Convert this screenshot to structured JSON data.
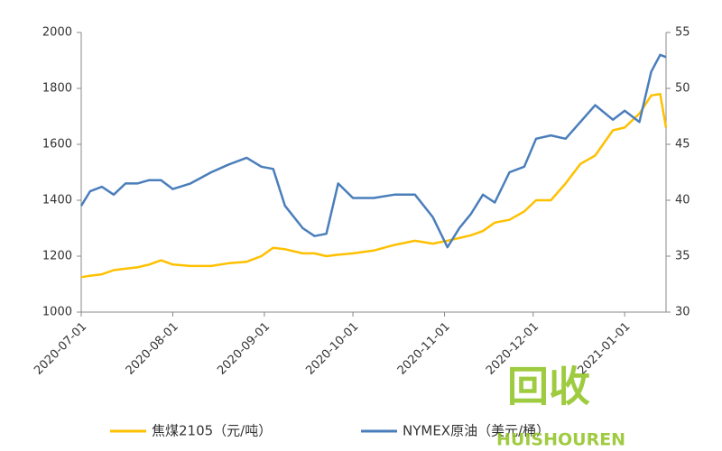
{
  "chart_data": {
    "type": "line",
    "x": [
      "2020-07-01",
      "2020-07-04",
      "2020-07-08",
      "2020-07-12",
      "2020-07-16",
      "2020-07-20",
      "2020-07-24",
      "2020-07-28",
      "2020-08-01",
      "2020-08-07",
      "2020-08-14",
      "2020-08-20",
      "2020-08-26",
      "2020-08-31",
      "2020-09-04",
      "2020-09-08",
      "2020-09-14",
      "2020-09-18",
      "2020-09-22",
      "2020-09-26",
      "2020-10-01",
      "2020-10-08",
      "2020-10-15",
      "2020-10-22",
      "2020-10-28",
      "2020-11-02",
      "2020-11-06",
      "2020-11-10",
      "2020-11-14",
      "2020-11-18",
      "2020-11-23",
      "2020-11-28",
      "2020-12-02",
      "2020-12-07",
      "2020-12-12",
      "2020-12-17",
      "2020-12-22",
      "2020-12-28",
      "2021-01-01",
      "2021-01-06",
      "2021-01-10",
      "2021-01-13",
      "2021-01-15"
    ],
    "series": [
      {
        "name": "焦煤2105（元/吨）",
        "color": "#ffc000",
        "values": [
          1125,
          1130,
          1135,
          1150,
          1155,
          1160,
          1170,
          1185,
          1170,
          1165,
          1165,
          1175,
          1180,
          1200,
          1230,
          1225,
          1210,
          1210,
          1200,
          1205,
          1210,
          1220,
          1240,
          1255,
          1245,
          1255,
          1265,
          1275,
          1290,
          1320,
          1330,
          1360,
          1400,
          1400,
          1460,
          1530,
          1560,
          1650,
          1660,
          1710,
          1775,
          1780,
          1660
        ]
      },
      {
        "name": "NYMEX原油（美元/桶）",
        "color": "#4a7ebb",
        "axis": "y2",
        "values": [
          39.5,
          40.8,
          41.2,
          40.5,
          41.5,
          41.5,
          41.8,
          41.8,
          41.0,
          41.5,
          42.5,
          43.2,
          43.8,
          43.0,
          42.8,
          39.5,
          37.5,
          36.8,
          37.0,
          41.5,
          40.2,
          40.2,
          40.5,
          40.5,
          38.5,
          35.8,
          37.5,
          38.8,
          40.5,
          39.8,
          42.5,
          43.0,
          45.5,
          45.8,
          45.5,
          47.0,
          48.5,
          47.2,
          48.0,
          47.0,
          51.5,
          53.0,
          52.8
        ]
      }
    ],
    "xlim": [
      "2020-07-01",
      "2021-01-15"
    ],
    "xticks": [
      "2020-07-01",
      "2020-08-01",
      "2020-09-01",
      "2020-10-01",
      "2020-11-01",
      "2020-12-01",
      "2021-01-01"
    ],
    "ylim": [
      1000,
      2000
    ],
    "yticks": [
      1000,
      1200,
      1400,
      1600,
      1800,
      2000
    ],
    "y2lim": [
      30,
      55
    ],
    "y2ticks": [
      30,
      35,
      40,
      45,
      50,
      55
    ]
  },
  "watermark": {
    "logo": "回收",
    "brand": "HUISHOUREN"
  }
}
